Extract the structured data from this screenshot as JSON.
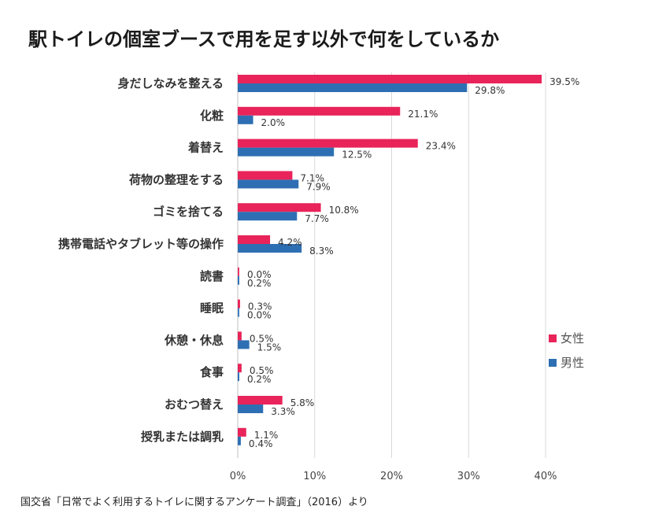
{
  "title": "駅トイレの個室ブースで用を足す以外で何をしているか",
  "source": "国交省「日常でよく利用するトイレに関するアンケート調査」（2016）より",
  "colors": {
    "female": "#e8245a",
    "male": "#2e6fb3",
    "grid": "#d9d9d9"
  },
  "chart_data": {
    "type": "bar",
    "orientation": "horizontal",
    "categories": [
      "身だしなみを整える",
      "化粧",
      "着替え",
      "荷物の整理をする",
      "ゴミを捨てる",
      "携帯電話やタブレット等の操作",
      "読書",
      "睡眠",
      "休憩・休息",
      "食事",
      "おむつ替え",
      "授乳または調乳"
    ],
    "series": [
      {
        "name": "女性",
        "color": "#e8245a",
        "values": [
          39.5,
          21.1,
          23.4,
          7.1,
          10.8,
          4.2,
          0.0,
          0.3,
          0.5,
          0.5,
          5.8,
          1.1
        ]
      },
      {
        "name": "男性",
        "color": "#2e6fb3",
        "values": [
          29.8,
          2.0,
          12.5,
          7.9,
          7.7,
          8.3,
          0.2,
          0.0,
          1.5,
          0.2,
          3.3,
          0.4
        ]
      }
    ],
    "value_suffix": "%",
    "xlim": [
      0,
      40
    ],
    "xticks": [
      0,
      10,
      20,
      30,
      40
    ],
    "xtick_labels": [
      "0%",
      "10%",
      "20%",
      "30%",
      "40%"
    ],
    "grid": true,
    "legend_position": "right"
  }
}
